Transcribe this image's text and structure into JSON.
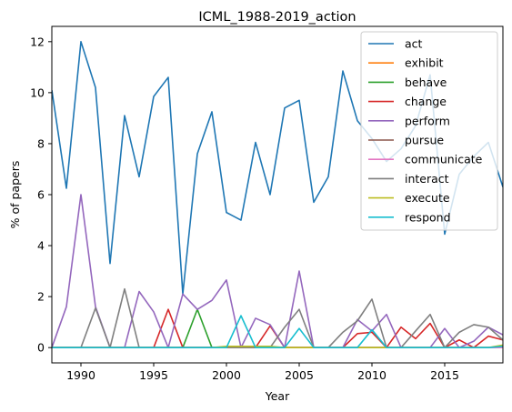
{
  "chart_data": {
    "type": "line",
    "title": "ICML_1988-2019_action",
    "xlabel": "Year",
    "ylabel": "% of papers",
    "xlim": [
      1988,
      2019
    ],
    "ylim": [
      -0.6,
      12.6
    ],
    "xticks": [
      1990,
      1995,
      2000,
      2005,
      2010,
      2015
    ],
    "yticks": [
      0,
      2,
      4,
      6,
      8,
      10,
      12
    ],
    "grid": false,
    "legend_position": "top-right",
    "x": [
      1988,
      1989,
      1990,
      1991,
      1992,
      1993,
      1994,
      1995,
      1996,
      1997,
      1998,
      1999,
      2000,
      2001,
      2002,
      2003,
      2004,
      2005,
      2006,
      2007,
      2008,
      2009,
      2010,
      2011,
      2012,
      2013,
      2014,
      2015,
      2016,
      2017,
      2018,
      2019
    ],
    "series": [
      {
        "name": "act",
        "color": "#1f77b4",
        "values": [
          10.1,
          6.25,
          12.0,
          10.2,
          3.3,
          9.1,
          6.7,
          9.85,
          10.6,
          2.1,
          7.6,
          9.25,
          5.3,
          5.0,
          8.05,
          6.0,
          9.4,
          9.7,
          5.7,
          6.7,
          10.85,
          8.9,
          8.2,
          7.3,
          7.8,
          8.7,
          10.7,
          4.45,
          6.8,
          7.5,
          8.05,
          6.3
        ]
      },
      {
        "name": "exhibit",
        "color": "#ff7f0e",
        "values": [
          0,
          0,
          0,
          0,
          0,
          0,
          0,
          0,
          0,
          0,
          0,
          0,
          0,
          0,
          0,
          0,
          0,
          0,
          0,
          0,
          0,
          0,
          0,
          0,
          0,
          0,
          0,
          0,
          0,
          0,
          0,
          0
        ]
      },
      {
        "name": "behave",
        "color": "#2ca02c",
        "values": [
          0,
          0,
          0,
          0,
          0,
          0,
          0,
          0,
          0,
          0,
          1.5,
          0,
          0,
          0,
          0,
          0,
          0,
          0,
          0,
          0,
          0,
          0,
          0,
          0,
          0,
          0,
          0,
          0,
          0,
          0,
          0,
          0
        ]
      },
      {
        "name": "change",
        "color": "#d62728",
        "values": [
          0,
          0,
          0,
          0,
          0,
          0,
          0,
          0,
          1.5,
          0,
          0,
          0,
          0,
          0,
          0,
          0.85,
          0,
          0,
          0,
          0,
          0,
          0.55,
          0.6,
          0,
          0.8,
          0.35,
          0.95,
          0,
          0.3,
          0,
          0.45,
          0.3
        ]
      },
      {
        "name": "perform",
        "color": "#9467bd",
        "values": [
          0,
          1.6,
          6.0,
          1.6,
          0,
          0,
          2.2,
          1.4,
          0,
          2.1,
          1.5,
          1.85,
          2.65,
          0,
          1.15,
          0.9,
          0,
          3.0,
          0,
          0,
          0,
          1.1,
          0.65,
          1.3,
          0,
          0,
          0,
          0.75,
          0,
          0.25,
          0.8,
          0.5
        ]
      },
      {
        "name": "pursue",
        "color": "#8c564b",
        "values": [
          0,
          0,
          0,
          0,
          0,
          0,
          0,
          0,
          0,
          0,
          0,
          0,
          0,
          0,
          0,
          0,
          0,
          0,
          0,
          0,
          0,
          0,
          0,
          0,
          0,
          0,
          0,
          0,
          0,
          0,
          0,
          0
        ]
      },
      {
        "name": "communicate",
        "color": "#e377c2",
        "values": [
          0,
          0,
          0,
          0,
          0,
          0,
          0,
          0,
          0,
          0,
          0,
          0,
          0,
          0,
          0,
          0,
          0,
          0,
          0,
          0,
          0,
          0,
          0,
          0,
          0,
          0,
          0,
          0,
          0,
          0,
          0,
          0
        ]
      },
      {
        "name": "interact",
        "color": "#7f7f7f",
        "values": [
          0,
          0,
          0,
          1.55,
          0,
          2.3,
          0,
          0,
          0,
          0,
          0,
          0,
          0,
          0,
          0,
          0,
          0.8,
          1.5,
          0,
          0,
          0.6,
          1.05,
          1.9,
          0,
          0,
          0.65,
          1.3,
          0,
          0.6,
          0.9,
          0.8,
          0.3
        ]
      },
      {
        "name": "execute",
        "color": "#bcbd22",
        "values": [
          0,
          0,
          0,
          0,
          0,
          0,
          0,
          0,
          0,
          0,
          0,
          0,
          0.05,
          0.05,
          0.05,
          0.05,
          0,
          0,
          0,
          0,
          0,
          0,
          0,
          0,
          0,
          0,
          0,
          0,
          0,
          0,
          0,
          0.1
        ]
      },
      {
        "name": "respond",
        "color": "#17becf",
        "values": [
          0,
          0,
          0,
          0,
          0,
          0,
          0,
          0,
          0,
          0,
          0,
          0,
          0,
          1.25,
          0,
          0,
          0,
          0.75,
          0,
          0,
          0,
          0,
          0.7,
          0,
          0,
          0,
          0,
          0,
          0,
          0,
          0,
          0.05
        ]
      }
    ]
  }
}
